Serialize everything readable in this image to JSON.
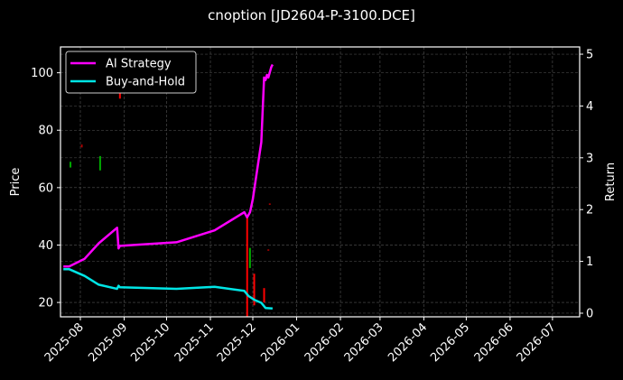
{
  "title": "cnoption [JD2604-P-3100.DCE]",
  "chart_data": {
    "type": "line",
    "title": "cnoption [JD2604-P-3100.DCE]",
    "xlabel": "",
    "ylabel": "Price",
    "ylabel_right": "Return",
    "ylim": [
      15,
      109
    ],
    "ylim_right": [
      -0.07,
      5.14
    ],
    "grid": true,
    "legend_position": "upper left",
    "x_ticks": [
      "2025-08",
      "2025-09",
      "2025-10",
      "2025-11",
      "2025-12",
      "2026-01",
      "2026-02",
      "2026-03",
      "2026-04",
      "2026-05",
      "2026-06",
      "2026-07"
    ],
    "y_ticks": [
      20,
      40,
      60,
      80,
      100
    ],
    "y_ticks_right": [
      0,
      1,
      2,
      3,
      4,
      5
    ],
    "legend": [
      "AI Strategy",
      "Buy-and-Hold"
    ],
    "series": [
      {
        "name": "AI Strategy",
        "color": "#ff00ff",
        "axis": "right",
        "x": [
          "2025-07-20",
          "2025-07-24",
          "2025-08-04",
          "2025-08-14",
          "2025-08-27",
          "2025-08-28",
          "2025-08-29",
          "2025-10-08",
          "2025-11-04",
          "2025-11-25",
          "2025-11-27",
          "2025-11-29",
          "2025-12-01",
          "2025-12-07",
          "2025-12-09",
          "2025-12-10",
          "2025-12-11",
          "2025-12-12",
          "2025-12-14",
          "2025-12-15"
        ],
        "values": [
          0.9,
          0.9,
          1.05,
          1.35,
          1.65,
          1.25,
          1.3,
          1.37,
          1.6,
          1.95,
          1.85,
          1.95,
          2.2,
          3.3,
          4.55,
          4.5,
          4.6,
          4.55,
          4.75,
          4.8
        ]
      },
      {
        "name": "Buy-and-Hold",
        "color": "#00e5e5",
        "axis": "right",
        "x": [
          "2025-07-20",
          "2025-07-24",
          "2025-08-04",
          "2025-08-14",
          "2025-08-27",
          "2025-08-28",
          "2025-08-29",
          "2025-10-08",
          "2025-11-04",
          "2025-11-25",
          "2025-11-28",
          "2025-12-02",
          "2025-12-07",
          "2025-12-10",
          "2025-12-15"
        ],
        "values": [
          0.85,
          0.85,
          0.72,
          0.55,
          0.47,
          0.53,
          0.5,
          0.47,
          0.51,
          0.43,
          0.33,
          0.26,
          0.2,
          0.1,
          0.09
        ]
      }
    ],
    "candles": [
      {
        "x": "2025-07-25",
        "low": 67,
        "high": 69,
        "color": "#00aa00"
      },
      {
        "x": "2025-08-02",
        "low": 74,
        "high": 75,
        "color": "#aa0000"
      },
      {
        "x": "2025-08-15",
        "low": 66,
        "high": 71,
        "color": "#00aa00"
      },
      {
        "x": "2025-08-29",
        "low": 91,
        "high": 104,
        "color": "#ff0000"
      },
      {
        "x": "2025-11-27",
        "low": 15,
        "high": 50,
        "color": "#ff0000"
      },
      {
        "x": "2025-11-29",
        "low": 32,
        "high": 39,
        "color": "#00aa00"
      },
      {
        "x": "2025-12-02",
        "low": 19,
        "high": 30,
        "color": "#ff0000"
      },
      {
        "x": "2025-12-09",
        "low": 20,
        "high": 25,
        "color": "#ff0000"
      },
      {
        "x": "2025-12-12",
        "low": 38,
        "high": 38.5,
        "color": "#aa0000"
      },
      {
        "x": "2025-12-13",
        "low": 54,
        "high": 54.5,
        "color": "#aa0000"
      }
    ]
  }
}
